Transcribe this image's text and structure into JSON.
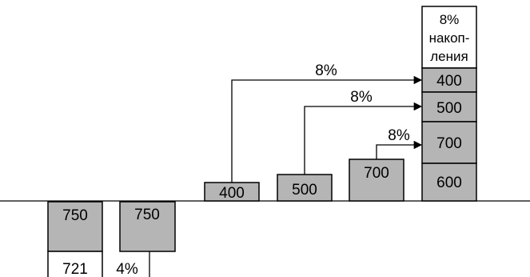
{
  "outflows": [
    {
      "value": "750"
    },
    {
      "value": "750"
    }
  ],
  "bottom_labels": {
    "left": "721",
    "right": "4%"
  },
  "inflows": [
    {
      "value": "400"
    },
    {
      "value": "500"
    },
    {
      "value": "700"
    }
  ],
  "stack": {
    "header_lines": [
      "8%",
      "накоп-",
      "ления"
    ],
    "segments": [
      "400",
      "500",
      "700",
      "600"
    ]
  },
  "arrows": [
    {
      "rate": "8%"
    },
    {
      "rate": "8%"
    },
    {
      "rate": "8%"
    }
  ],
  "colors": {
    "box_fill": "#b5b5b5",
    "line": "#000000"
  }
}
